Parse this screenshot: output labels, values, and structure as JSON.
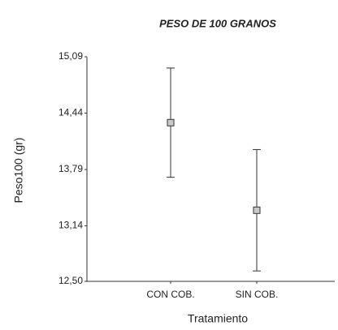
{
  "chart_data": {
    "type": "errorbar",
    "title": "PESO DE 100 GRANOS",
    "x_label": "Tratamiento",
    "y_label": "Peso100 (gr)",
    "categories": [
      "CON COB.",
      "SIN COB."
    ],
    "values": [
      14.33,
      13.32
    ],
    "errors": [
      0.63,
      0.7
    ],
    "color": "#333333",
    "marker_color": "#c8c8c8",
    "ylim": [
      12.5,
      15.09
    ],
    "yticks": [
      {
        "value": 12.5,
        "label": "12,50"
      },
      {
        "value": 13.14,
        "label": "13,14"
      },
      {
        "value": 13.79,
        "label": "13,79"
      },
      {
        "value": 14.44,
        "label": "14,44"
      },
      {
        "value": 15.09,
        "label": "15,09"
      }
    ],
    "grid": false
  }
}
